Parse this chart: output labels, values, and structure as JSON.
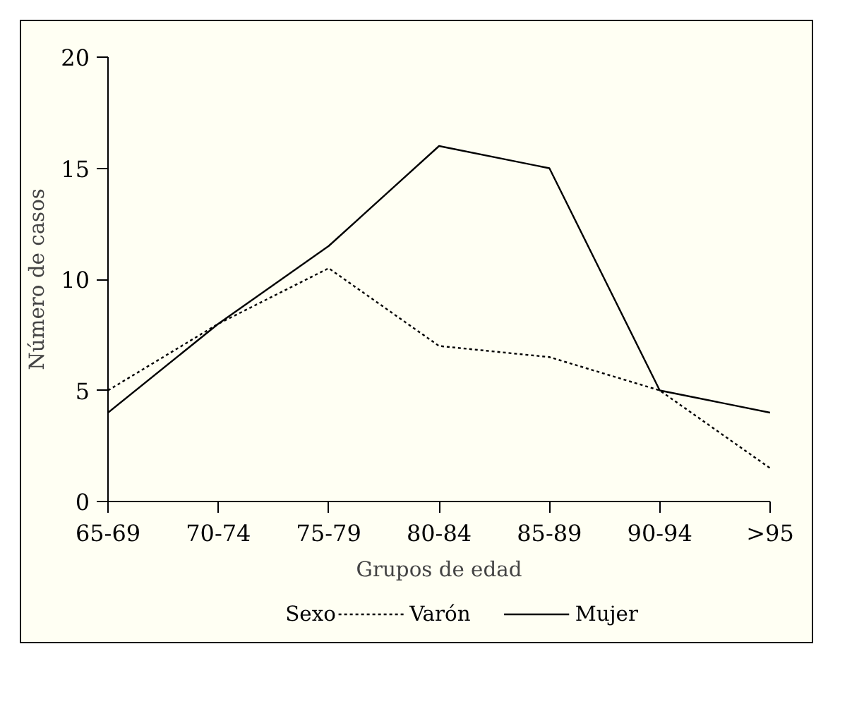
{
  "chart_data": {
    "type": "line",
    "xlabel": "Grupos de edad",
    "ylabel": "Número de casos",
    "legend_title": "Sexo",
    "legend": "bottom",
    "grid": false,
    "categories": [
      "65-69",
      "70-74",
      "75-79",
      "80-84",
      "85-89",
      "90-94",
      ">95"
    ],
    "ylim": [
      0,
      20
    ],
    "yticks": [
      0,
      5,
      10,
      15,
      20
    ],
    "series": [
      {
        "name": "Varón",
        "color": "#000000",
        "line_style": "dotted",
        "values": [
          5,
          8,
          10.5,
          7,
          6.5,
          5,
          1.5
        ]
      },
      {
        "name": "Mujer",
        "color": "#000000",
        "line_style": "solid",
        "values": [
          4,
          8,
          11.5,
          16,
          15,
          5,
          4
        ]
      }
    ]
  }
}
